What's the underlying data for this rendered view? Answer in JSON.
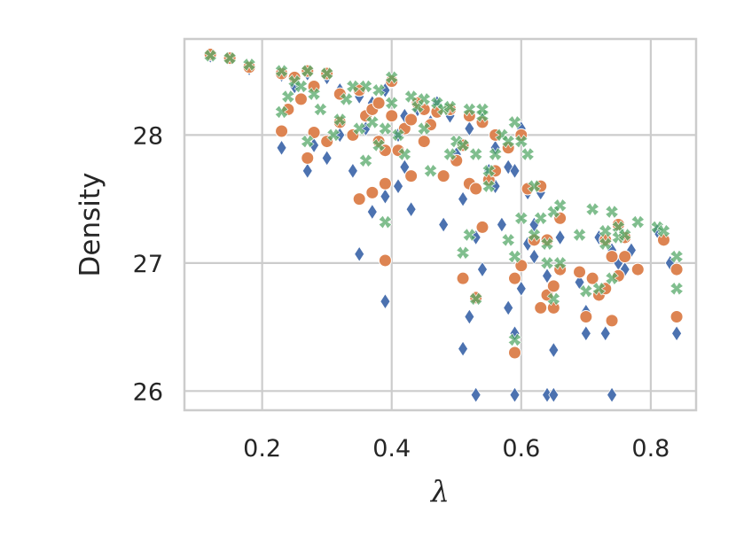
{
  "chart_data": {
    "type": "scatter",
    "xlabel": "λ",
    "ylabel": "Density",
    "xlim": [
      0.08,
      0.87
    ],
    "ylim": [
      25.85,
      28.75
    ],
    "xticks": [
      0.2,
      0.4,
      0.6,
      0.8
    ],
    "yticks": [
      26,
      27,
      28
    ],
    "xtick_labels": [
      "0.2",
      "0.4",
      "0.6",
      "0.8"
    ],
    "ytick_labels": [
      "26",
      "27",
      "28"
    ],
    "grid": true,
    "legend": "none",
    "series": [
      {
        "marker": "diamond",
        "color": "#4c72b0",
        "points": [
          [
            0.12,
            28.62
          ],
          [
            0.15,
            28.6
          ],
          [
            0.18,
            28.52
          ],
          [
            0.23,
            28.47
          ],
          [
            0.23,
            27.9
          ],
          [
            0.25,
            28.38
          ],
          [
            0.27,
            28.48
          ],
          [
            0.27,
            27.72
          ],
          [
            0.28,
            27.92
          ],
          [
            0.3,
            28.45
          ],
          [
            0.3,
            27.82
          ],
          [
            0.32,
            28.35
          ],
          [
            0.32,
            28.0
          ],
          [
            0.34,
            27.72
          ],
          [
            0.35,
            27.07
          ],
          [
            0.35,
            28.3
          ],
          [
            0.36,
            28.05
          ],
          [
            0.37,
            28.25
          ],
          [
            0.37,
            27.4
          ],
          [
            0.38,
            27.95
          ],
          [
            0.39,
            28.35
          ],
          [
            0.39,
            27.52
          ],
          [
            0.39,
            26.7
          ],
          [
            0.4,
            28.42
          ],
          [
            0.41,
            28.0
          ],
          [
            0.41,
            27.6
          ],
          [
            0.42,
            28.15
          ],
          [
            0.42,
            27.75
          ],
          [
            0.43,
            27.42
          ],
          [
            0.44,
            28.2
          ],
          [
            0.45,
            27.95
          ],
          [
            0.46,
            28.1
          ],
          [
            0.47,
            28.25
          ],
          [
            0.48,
            27.3
          ],
          [
            0.49,
            28.15
          ],
          [
            0.5,
            27.85
          ],
          [
            0.51,
            27.5
          ],
          [
            0.51,
            26.33
          ],
          [
            0.52,
            28.05
          ],
          [
            0.52,
            26.58
          ],
          [
            0.53,
            27.2
          ],
          [
            0.53,
            25.97
          ],
          [
            0.54,
            26.95
          ],
          [
            0.54,
            28.12
          ],
          [
            0.55,
            27.72
          ],
          [
            0.56,
            27.6
          ],
          [
            0.56,
            27.9
          ],
          [
            0.57,
            27.3
          ],
          [
            0.58,
            27.75
          ],
          [
            0.58,
            26.65
          ],
          [
            0.59,
            27.72
          ],
          [
            0.59,
            26.45
          ],
          [
            0.59,
            25.97
          ],
          [
            0.6,
            28.05
          ],
          [
            0.6,
            26.8
          ],
          [
            0.61,
            27.55
          ],
          [
            0.61,
            27.15
          ],
          [
            0.62,
            27.3
          ],
          [
            0.62,
            27.05
          ],
          [
            0.63,
            27.55
          ],
          [
            0.64,
            26.9
          ],
          [
            0.64,
            25.97
          ],
          [
            0.65,
            26.32
          ],
          [
            0.65,
            25.97
          ],
          [
            0.66,
            27.2
          ],
          [
            0.66,
            26.95
          ],
          [
            0.69,
            26.85
          ],
          [
            0.7,
            26.45
          ],
          [
            0.7,
            26.62
          ],
          [
            0.72,
            27.2
          ],
          [
            0.73,
            26.45
          ],
          [
            0.73,
            26.8
          ],
          [
            0.74,
            27.1
          ],
          [
            0.74,
            25.97
          ],
          [
            0.75,
            27.0
          ],
          [
            0.76,
            26.95
          ],
          [
            0.77,
            27.1
          ],
          [
            0.81,
            27.25
          ],
          [
            0.83,
            27.0
          ],
          [
            0.84,
            26.45
          ]
        ]
      },
      {
        "marker": "circle",
        "color": "#dd8452",
        "points": [
          [
            0.12,
            28.63
          ],
          [
            0.15,
            28.6
          ],
          [
            0.18,
            28.53
          ],
          [
            0.23,
            28.48
          ],
          [
            0.23,
            28.03
          ],
          [
            0.24,
            28.2
          ],
          [
            0.25,
            28.45
          ],
          [
            0.26,
            28.28
          ],
          [
            0.27,
            27.82
          ],
          [
            0.27,
            28.5
          ],
          [
            0.28,
            28.38
          ],
          [
            0.28,
            28.02
          ],
          [
            0.3,
            28.48
          ],
          [
            0.3,
            27.95
          ],
          [
            0.32,
            28.32
          ],
          [
            0.32,
            28.1
          ],
          [
            0.34,
            28.0
          ],
          [
            0.35,
            28.35
          ],
          [
            0.35,
            27.5
          ],
          [
            0.36,
            28.15
          ],
          [
            0.37,
            27.55
          ],
          [
            0.37,
            28.2
          ],
          [
            0.38,
            27.95
          ],
          [
            0.38,
            28.25
          ],
          [
            0.39,
            27.88
          ],
          [
            0.39,
            27.02
          ],
          [
            0.39,
            27.62
          ],
          [
            0.4,
            28.42
          ],
          [
            0.4,
            28.15
          ],
          [
            0.41,
            27.88
          ],
          [
            0.42,
            28.05
          ],
          [
            0.43,
            28.12
          ],
          [
            0.43,
            27.68
          ],
          [
            0.44,
            28.25
          ],
          [
            0.45,
            27.95
          ],
          [
            0.45,
            28.2
          ],
          [
            0.46,
            28.08
          ],
          [
            0.47,
            28.18
          ],
          [
            0.48,
            27.68
          ],
          [
            0.49,
            28.2
          ],
          [
            0.5,
            27.8
          ],
          [
            0.51,
            26.88
          ],
          [
            0.51,
            27.92
          ],
          [
            0.52,
            28.15
          ],
          [
            0.52,
            27.62
          ],
          [
            0.53,
            27.58
          ],
          [
            0.53,
            26.73
          ],
          [
            0.54,
            27.28
          ],
          [
            0.54,
            28.1
          ],
          [
            0.55,
            27.65
          ],
          [
            0.56,
            27.72
          ],
          [
            0.56,
            28.0
          ],
          [
            0.58,
            27.9
          ],
          [
            0.59,
            26.88
          ],
          [
            0.59,
            26.3
          ],
          [
            0.6,
            28.0
          ],
          [
            0.6,
            26.98
          ],
          [
            0.61,
            27.58
          ],
          [
            0.62,
            27.18
          ],
          [
            0.63,
            27.6
          ],
          [
            0.63,
            26.65
          ],
          [
            0.64,
            27.18
          ],
          [
            0.64,
            26.75
          ],
          [
            0.65,
            26.82
          ],
          [
            0.65,
            26.65
          ],
          [
            0.66,
            27.35
          ],
          [
            0.66,
            26.95
          ],
          [
            0.69,
            26.93
          ],
          [
            0.7,
            26.58
          ],
          [
            0.71,
            26.88
          ],
          [
            0.72,
            26.75
          ],
          [
            0.73,
            26.8
          ],
          [
            0.73,
            27.18
          ],
          [
            0.74,
            27.05
          ],
          [
            0.74,
            26.55
          ],
          [
            0.75,
            26.9
          ],
          [
            0.75,
            27.3
          ],
          [
            0.76,
            27.05
          ],
          [
            0.76,
            27.2
          ],
          [
            0.78,
            26.95
          ],
          [
            0.82,
            27.18
          ],
          [
            0.84,
            26.95
          ],
          [
            0.84,
            26.58
          ]
        ]
      },
      {
        "marker": "x",
        "color": "#55a868",
        "points": [
          [
            0.12,
            28.62
          ],
          [
            0.15,
            28.6
          ],
          [
            0.18,
            28.55
          ],
          [
            0.23,
            28.5
          ],
          [
            0.23,
            28.18
          ],
          [
            0.24,
            28.3
          ],
          [
            0.25,
            28.42
          ],
          [
            0.26,
            28.38
          ],
          [
            0.27,
            28.5
          ],
          [
            0.27,
            27.95
          ],
          [
            0.28,
            28.32
          ],
          [
            0.29,
            28.2
          ],
          [
            0.3,
            28.48
          ],
          [
            0.31,
            28.0
          ],
          [
            0.32,
            28.12
          ],
          [
            0.33,
            28.28
          ],
          [
            0.34,
            28.38
          ],
          [
            0.35,
            28.05
          ],
          [
            0.36,
            28.38
          ],
          [
            0.36,
            27.8
          ],
          [
            0.37,
            28.1
          ],
          [
            0.38,
            28.35
          ],
          [
            0.38,
            27.92
          ],
          [
            0.39,
            28.05
          ],
          [
            0.39,
            27.32
          ],
          [
            0.4,
            28.45
          ],
          [
            0.4,
            28.25
          ],
          [
            0.41,
            28.0
          ],
          [
            0.42,
            27.85
          ],
          [
            0.43,
            28.3
          ],
          [
            0.44,
            28.22
          ],
          [
            0.45,
            28.05
          ],
          [
            0.45,
            28.28
          ],
          [
            0.46,
            27.72
          ],
          [
            0.47,
            28.25
          ],
          [
            0.48,
            28.2
          ],
          [
            0.49,
            28.22
          ],
          [
            0.49,
            27.85
          ],
          [
            0.5,
            27.95
          ],
          [
            0.51,
            27.92
          ],
          [
            0.51,
            27.08
          ],
          [
            0.52,
            28.2
          ],
          [
            0.52,
            27.22
          ],
          [
            0.53,
            27.85
          ],
          [
            0.53,
            26.72
          ],
          [
            0.54,
            28.15
          ],
          [
            0.54,
            28.2
          ],
          [
            0.55,
            27.6
          ],
          [
            0.55,
            27.72
          ],
          [
            0.56,
            27.85
          ],
          [
            0.57,
            28.0
          ],
          [
            0.58,
            27.95
          ],
          [
            0.58,
            27.18
          ],
          [
            0.59,
            27.05
          ],
          [
            0.59,
            26.4
          ],
          [
            0.59,
            28.1
          ],
          [
            0.6,
            27.35
          ],
          [
            0.6,
            27.95
          ],
          [
            0.61,
            27.85
          ],
          [
            0.62,
            27.22
          ],
          [
            0.62,
            27.6
          ],
          [
            0.63,
            27.35
          ],
          [
            0.64,
            27.0
          ],
          [
            0.64,
            27.15
          ],
          [
            0.65,
            27.4
          ],
          [
            0.65,
            26.72
          ],
          [
            0.66,
            27.45
          ],
          [
            0.66,
            27.0
          ],
          [
            0.69,
            27.22
          ],
          [
            0.7,
            26.78
          ],
          [
            0.71,
            27.42
          ],
          [
            0.72,
            26.8
          ],
          [
            0.73,
            27.25
          ],
          [
            0.73,
            27.15
          ],
          [
            0.74,
            27.4
          ],
          [
            0.74,
            26.88
          ],
          [
            0.75,
            27.28
          ],
          [
            0.75,
            27.2
          ],
          [
            0.76,
            27.22
          ],
          [
            0.78,
            27.32
          ],
          [
            0.81,
            27.28
          ],
          [
            0.82,
            27.25
          ],
          [
            0.84,
            27.05
          ],
          [
            0.84,
            26.8
          ]
        ]
      }
    ]
  }
}
